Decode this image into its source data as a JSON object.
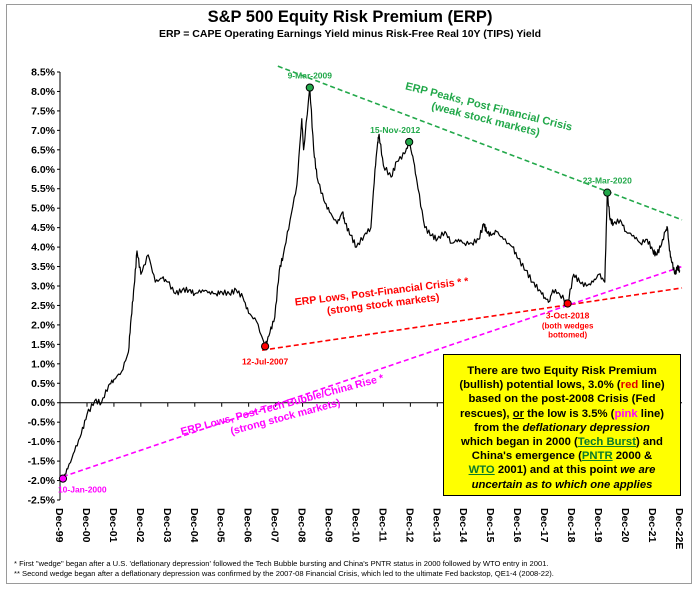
{
  "title": "S&P 500 Equity Risk Premium (ERP)",
  "subtitle": "ERP = CAPE Operating Earnings Yield minus Risk-Free Real 10Y (TIPS) Yield",
  "infobox": {
    "t1": "There are two Equity Risk Premium",
    "t2": "(bullish) potential lows, 3.0% (",
    "red_word": "red",
    "t3": " line)",
    "t4": "based on the post-2008 Crisis (Fed",
    "t5a": "rescues), ",
    "t5b": "or",
    "t5c": " the low is 3.5% (",
    "pink_word": "pink",
    "t5d": " line)",
    "t6a": "from the ",
    "t6b": "deflationary depression",
    "t7a": "which began in 2000 (",
    "tech_burst": "Tech Burst",
    "t7b": ") and",
    "t8a": "China's emergence (",
    "pntr": "PNTR",
    "t8b": " 2000 &",
    "wto": "WTO",
    "t9a": " 2001) and at this point ",
    "t9b": "we are",
    "t10": "uncertain as to which one applies"
  },
  "footnotes": {
    "line1": "*   First \"wedge\" began after a U.S. 'deflationary depression' followed the Tech Bubble bursting and China's PNTR status in 2000 followed by WTO entry in 2001.",
    "line2": "** Second wedge began after a deflationary depression was confirmed by the 2007-08 Financial Crisis, which led to the ultimate Fed backstop, QE1-4 (2008-22)."
  },
  "chart_data": {
    "type": "line",
    "title": "S&P 500 Equity Risk Premium (ERP)",
    "ylim": [
      -2.5,
      8.5
    ],
    "y_tick_step": 0.5,
    "x_range": [
      "1999-12-01",
      "2022-12-31"
    ],
    "x_tick_labels": [
      "Dec-99",
      "Dec-00",
      "Dec-01",
      "Dec-02",
      "Dec-03",
      "Dec-04",
      "Dec-05",
      "Dec-06",
      "Dec-07",
      "Dec-08",
      "Dec-09",
      "Dec-10",
      "Dec-11",
      "Dec-12",
      "Dec-13",
      "Dec-14",
      "Dec-15",
      "Dec-16",
      "Dec-17",
      "Dec-18",
      "Dec-19",
      "Dec-20",
      "Dec-21",
      "Dec-22E"
    ],
    "grid": false,
    "series": [
      {
        "color": "#000000",
        "x": [
          "2000-01-10",
          "2000-03-15",
          "2000-06-15",
          "2000-09-15",
          "2000-12-01",
          "2001-03-15",
          "2001-06-15",
          "2001-09-20",
          "2001-12-01",
          "2002-03-15",
          "2002-06-15",
          "2002-07-23",
          "2002-09-01",
          "2002-10-10",
          "2002-12-01",
          "2003-03-11",
          "2003-06-15",
          "2003-09-15",
          "2003-12-01",
          "2004-03-15",
          "2004-06-15",
          "2004-09-15",
          "2004-12-01",
          "2005-03-15",
          "2005-06-15",
          "2005-09-15",
          "2005-12-01",
          "2006-03-15",
          "2006-06-15",
          "2006-09-15",
          "2006-12-01",
          "2007-03-15",
          "2007-07-12",
          "2007-09-15",
          "2007-11-20",
          "2008-01-20",
          "2008-03-15",
          "2008-06-15",
          "2008-09-15",
          "2008-11-20",
          "2008-12-15",
          "2009-03-09",
          "2009-05-01",
          "2009-06-15",
          "2009-09-15",
          "2009-12-01",
          "2010-03-15",
          "2010-05-25",
          "2010-07-01",
          "2010-09-15",
          "2010-12-01",
          "2011-03-15",
          "2011-06-15",
          "2011-08-10",
          "2011-09-15",
          "2011-10-04",
          "2011-12-01",
          "2012-03-15",
          "2012-06-01",
          "2012-09-15",
          "2012-11-15",
          "2013-01-15",
          "2013-03-15",
          "2013-06-15",
          "2013-09-15",
          "2013-12-01",
          "2014-03-15",
          "2014-06-15",
          "2014-09-15",
          "2014-12-01",
          "2015-03-15",
          "2015-06-15",
          "2015-08-24",
          "2015-09-29",
          "2015-12-01",
          "2016-02-11",
          "2016-05-15",
          "2016-09-15",
          "2016-12-01",
          "2017-03-15",
          "2017-06-15",
          "2017-09-15",
          "2017-12-01",
          "2018-01-26",
          "2018-03-15",
          "2018-06-15",
          "2018-10-03",
          "2018-12-24",
          "2019-03-15",
          "2019-06-15",
          "2019-09-15",
          "2019-12-01",
          "2020-02-19",
          "2020-03-23",
          "2020-05-01",
          "2020-06-15",
          "2020-09-15",
          "2020-12-01",
          "2021-03-15",
          "2021-06-15",
          "2021-09-15",
          "2021-12-01",
          "2022-01-15",
          "2022-03-15",
          "2022-05-20",
          "2022-06-16",
          "2022-07-15",
          "2022-08-16",
          "2022-09-30",
          "2022-10-31",
          "2022-11-30"
        ],
        "y": [
          -1.95,
          -1.7,
          -1.25,
          -0.8,
          -0.3,
          0.05,
          0.0,
          0.45,
          0.6,
          0.8,
          1.3,
          2.2,
          3.0,
          3.9,
          3.3,
          3.8,
          3.1,
          3.2,
          3.1,
          2.8,
          2.9,
          2.9,
          2.8,
          2.9,
          2.85,
          2.8,
          2.85,
          2.8,
          2.9,
          2.7,
          2.3,
          2.1,
          1.45,
          1.8,
          2.2,
          3.4,
          3.8,
          4.7,
          5.6,
          7.3,
          6.5,
          8.1,
          6.5,
          5.8,
          5.2,
          4.9,
          4.6,
          4.9,
          4.6,
          4.3,
          4.0,
          4.3,
          4.5,
          6.0,
          6.7,
          6.9,
          6.1,
          5.8,
          6.2,
          6.4,
          6.7,
          6.2,
          5.5,
          4.5,
          4.3,
          4.2,
          4.4,
          4.1,
          4.2,
          4.1,
          4.1,
          4.2,
          4.6,
          4.4,
          4.3,
          4.4,
          4.2,
          4.0,
          3.7,
          3.4,
          3.1,
          2.9,
          2.7,
          2.6,
          2.9,
          2.8,
          2.55,
          3.3,
          3.1,
          3.0,
          3.1,
          3.3,
          3.1,
          5.4,
          4.7,
          4.6,
          4.7,
          4.4,
          4.3,
          4.1,
          4.2,
          3.9,
          3.8,
          4.0,
          4.4,
          4.5,
          3.9,
          3.6,
          3.3,
          3.5,
          3.4
        ]
      }
    ],
    "trend_lines": [
      {
        "name": "peaks",
        "color": "#22a84a",
        "x": [
          "2008-01-01",
          "2022-12-31"
        ],
        "y": [
          8.65,
          4.7
        ]
      },
      {
        "name": "lows_post_crisis",
        "color": "#ff0000",
        "x": [
          "2007-06-01",
          "2022-12-31"
        ],
        "y": [
          1.35,
          2.95
        ]
      },
      {
        "name": "lows_post_tech",
        "color": "#ff00ff",
        "x": [
          "2000-01-10",
          "2022-12-31"
        ],
        "y": [
          -1.9,
          3.5
        ]
      }
    ],
    "markers": [
      {
        "label": "9-Mar-2009",
        "x": "2009-03-09",
        "y": 8.1,
        "color": "#22a84a"
      },
      {
        "label": "15-Nov-2012",
        "x": "2012-11-15",
        "y": 6.7,
        "color": "#22a84a"
      },
      {
        "label": "23-Mar-2020",
        "x": "2020-03-23",
        "y": 5.4,
        "color": "#22a84a"
      },
      {
        "label": "12-Jul-2007",
        "x": "2007-07-12",
        "y": 1.45,
        "color": "#ff0000"
      },
      {
        "label": "3-Oct-2018",
        "x": "2018-10-03",
        "y": 2.55,
        "color": "#ff0000"
      },
      {
        "label": "10-Jan-2000",
        "x": "2000-01-10",
        "y": -1.95,
        "color": "#ff00ff"
      }
    ],
    "annotations": {
      "peaks": [
        "ERP Peaks, Post Financial Crisis",
        "(weak stock markets)"
      ],
      "lows_crisis": [
        "ERP Lows, Post-Financial Crisis * *",
        "(strong stock markets)"
      ],
      "lows_tech": [
        "ERP Lows, Post-Tech Bubble/China Rise *",
        "(strong stock markets)"
      ],
      "wedge_note": [
        "(both wedges",
        "bottomed)"
      ]
    }
  }
}
